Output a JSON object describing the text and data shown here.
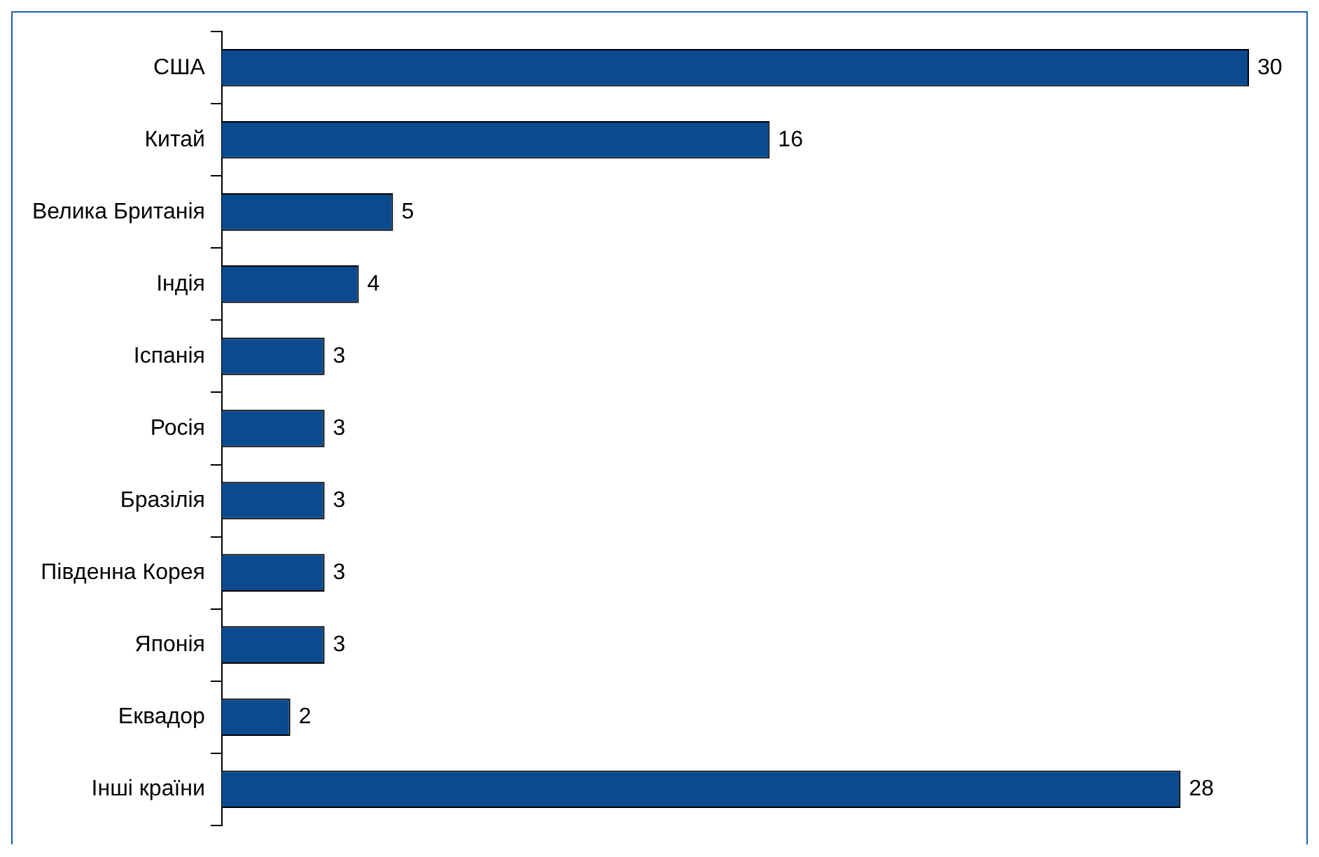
{
  "chart_data": {
    "type": "bar",
    "orientation": "horizontal",
    "categories": [
      "США",
      "Китай",
      "Велика Британія",
      "Індія",
      "Іспанія",
      "Росія",
      "Бразілія",
      "Південна Корея",
      "Японія",
      "Еквадор",
      "Інші країни"
    ],
    "values": [
      30,
      16,
      5,
      4,
      3,
      3,
      3,
      3,
      3,
      2,
      28
    ],
    "color": "#0b4a8e",
    "data_labels": true,
    "grid": false,
    "legend": false
  }
}
